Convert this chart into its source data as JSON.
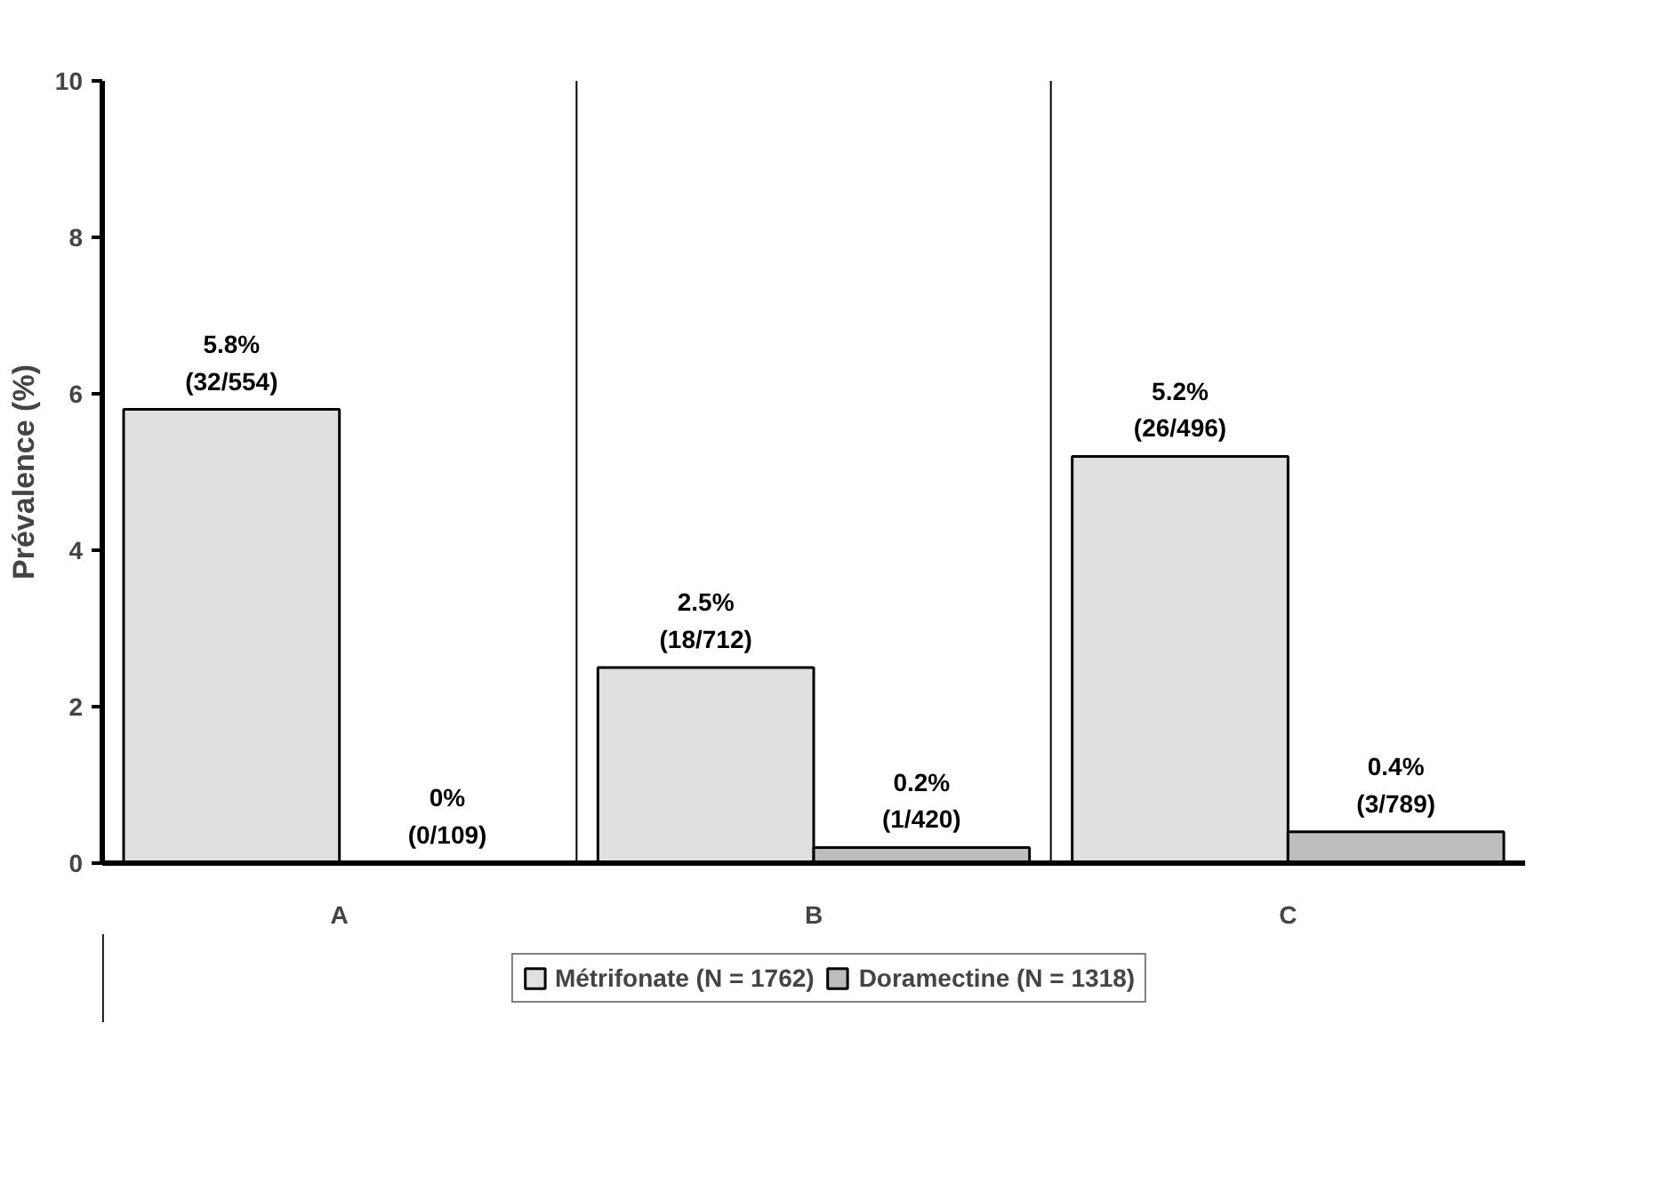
{
  "chart_data": {
    "type": "bar",
    "ylabel": "Prévalence (%)",
    "categories": [
      "A",
      "B",
      "C"
    ],
    "series": [
      {
        "name": "Métrifonate (N = 1762)",
        "color": "#e0e0e0",
        "values": [
          5.8,
          2.5,
          5.2
        ],
        "value_labels": [
          "5.8%\n(32/554)",
          "2.5%\n(18/712)",
          "5.2%\n(26/496)"
        ]
      },
      {
        "name": "Doramectine (N = 1318)",
        "color": "#bdbdbd",
        "values": [
          0,
          0.2,
          0.4
        ],
        "value_labels": [
          "0%\n(0/109)",
          "0.2%\n(1/420)",
          "0.4%\n(3/789)"
        ]
      }
    ],
    "ylim": [
      0,
      10
    ],
    "yticks": [
      0,
      2,
      4,
      6,
      8,
      10
    ],
    "grid": "x",
    "legend": "bottom"
  }
}
